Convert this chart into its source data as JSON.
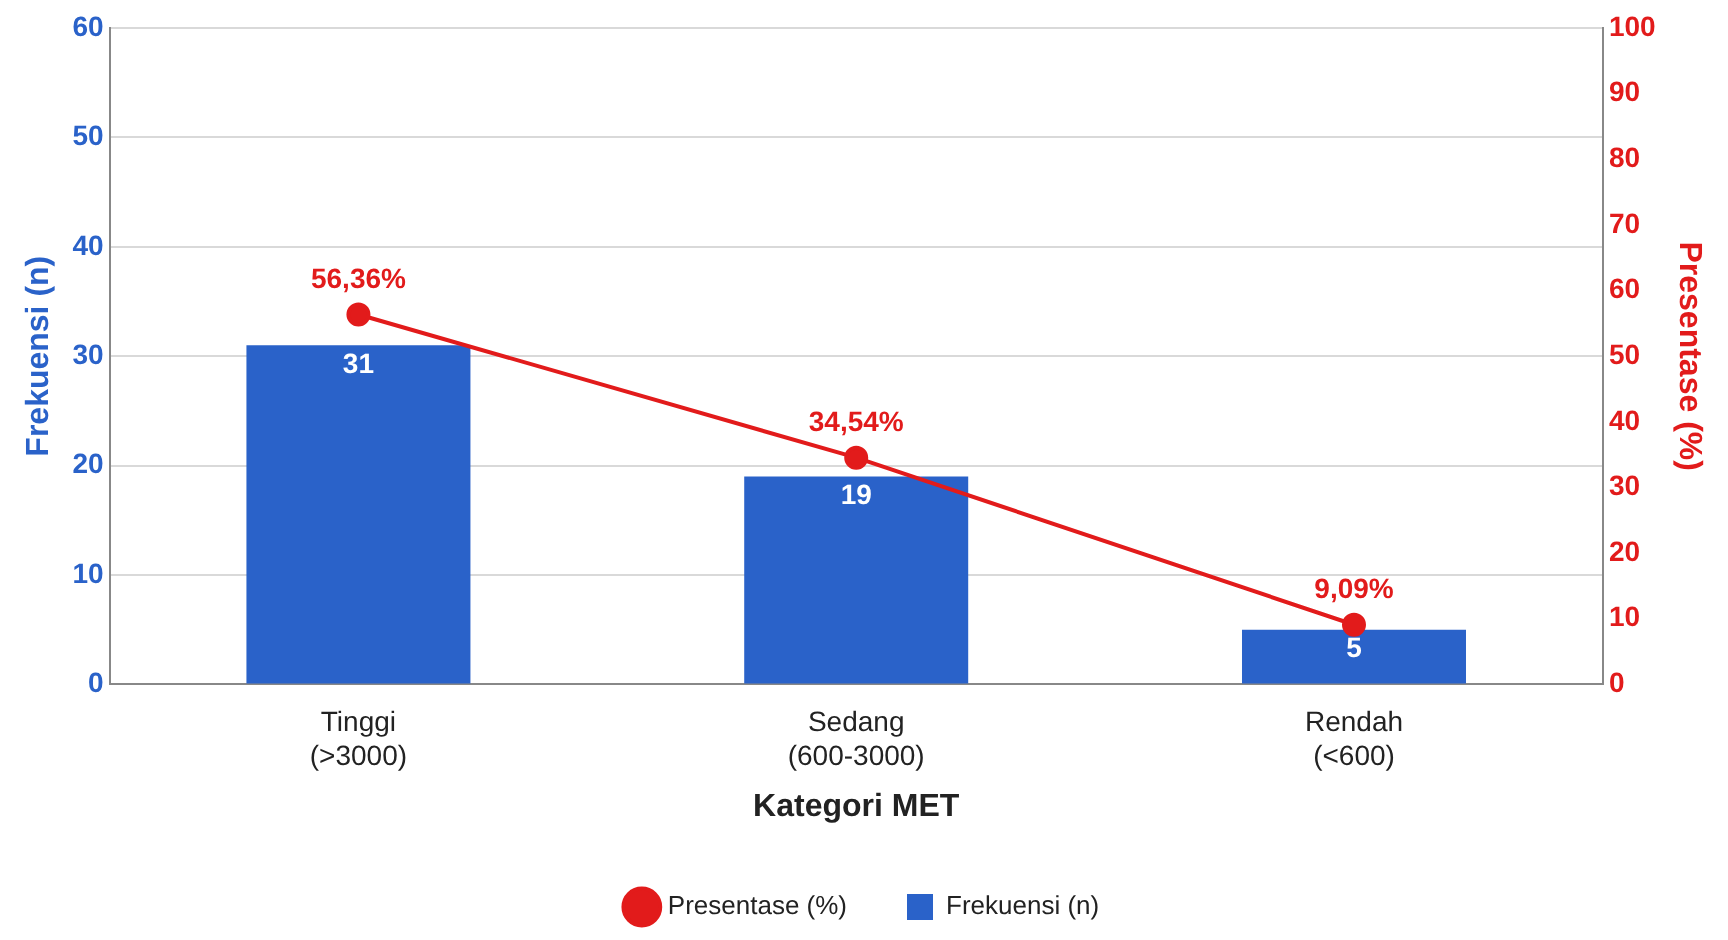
{
  "chart_data": {
    "type": "bar",
    "xlabel": "Kategori MET",
    "ylabel": "Frekuensi (n)",
    "y2label": "Presentase (%)",
    "categories": [
      "Tinggi\n(>3000)",
      "Sedang\n(600-3000)",
      "Rendah\n(<600)"
    ],
    "series": [
      {
        "name": "Frekuensi (n)",
        "color": "#2a62c9",
        "values": [
          31,
          19,
          5
        ]
      },
      {
        "name": "Presentase (%)",
        "type": "line",
        "axis": "y2",
        "color": "#e21b1b",
        "values": [
          56.36,
          34.54,
          9.09
        ],
        "value_labels": [
          "56,36%",
          "34,54%",
          "9,09%"
        ]
      }
    ],
    "ylim": [
      0,
      60
    ],
    "yticks": [
      0,
      10,
      20,
      30,
      40,
      50,
      60
    ],
    "y2lim": [
      0,
      100
    ],
    "y2ticks": [
      0,
      10,
      20,
      30,
      40,
      50,
      60,
      70,
      80,
      90,
      100
    ],
    "data_labels": true,
    "grid": "y",
    "legend": "bottom",
    "marker": "circle",
    "line_style": "solid"
  }
}
